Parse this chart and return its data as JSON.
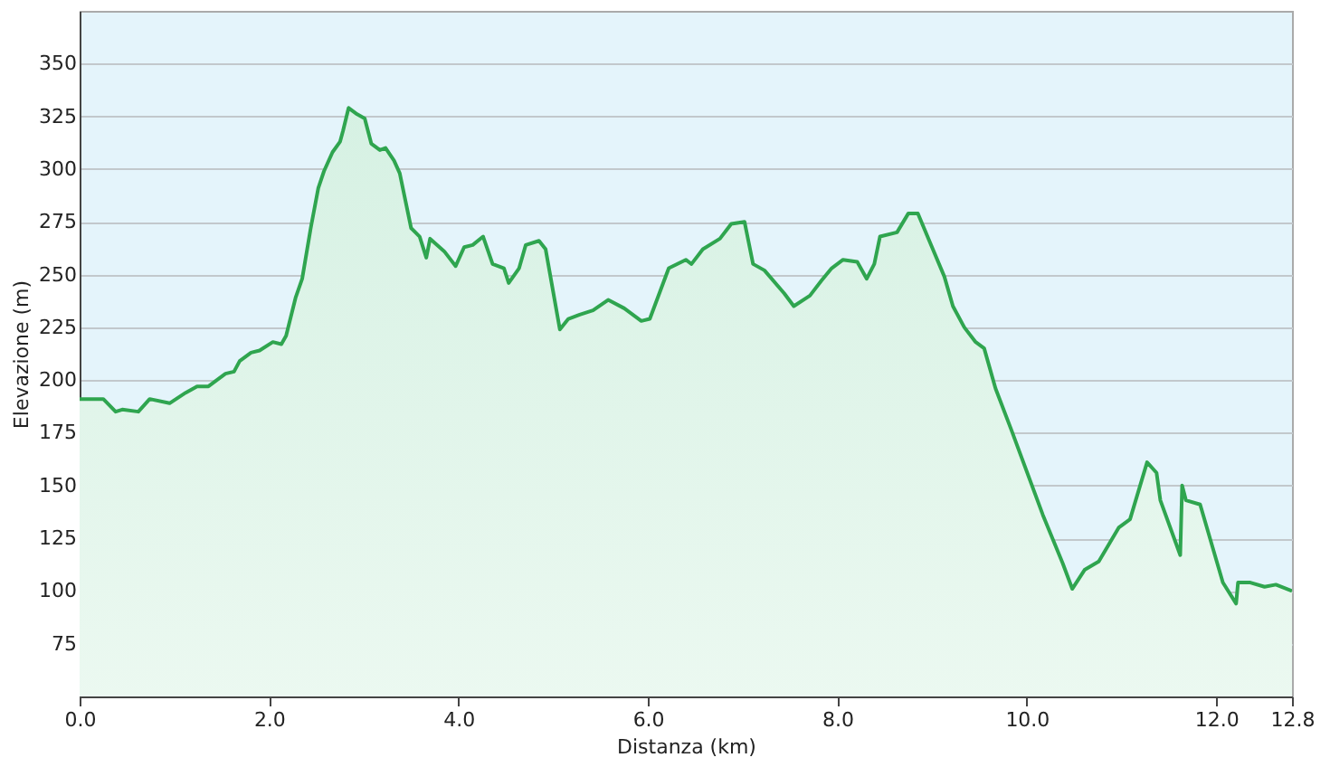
{
  "chart_data": {
    "type": "area",
    "xlabel": "Distanza  (km)",
    "ylabel": "Elevazione (m)",
    "xlim": [
      0,
      12.8
    ],
    "ylim": [
      50,
      375
    ],
    "xticks": [
      {
        "value": 0,
        "label": "0.0"
      },
      {
        "value": 2,
        "label": "2.0"
      },
      {
        "value": 4,
        "label": "4.0"
      },
      {
        "value": 6,
        "label": "6.0"
      },
      {
        "value": 8,
        "label": "8.0"
      },
      {
        "value": 10,
        "label": "10.0"
      },
      {
        "value": 12,
        "label": "12.0"
      },
      {
        "value": 12.8,
        "label": "12.8"
      }
    ],
    "yticks": [
      75,
      100,
      125,
      150,
      175,
      200,
      225,
      250,
      275,
      300,
      325,
      350
    ],
    "grid": "y",
    "series": [
      {
        "color": "#2fa54f",
        "x": [
          0,
          0.25,
          0.38,
          0.45,
          0.62,
          0.74,
          0.95,
          1.12,
          1.24,
          1.36,
          1.54,
          1.63,
          1.69,
          1.81,
          1.9,
          2.04,
          2.13,
          2.18,
          2.28,
          2.35,
          2.44,
          2.52,
          2.58,
          2.67,
          2.75,
          2.78,
          2.84,
          2.93,
          3.01,
          3.08,
          3.17,
          3.23,
          3.32,
          3.38,
          3.5,
          3.59,
          3.66,
          3.7,
          3.85,
          3.97,
          4.06,
          4.15,
          4.26,
          4.36,
          4.48,
          4.53,
          4.64,
          4.71,
          4.85,
          4.92,
          5.07,
          5.16,
          5.28,
          5.42,
          5.58,
          5.75,
          5.93,
          6.02,
          6.22,
          6.4,
          6.46,
          6.58,
          6.76,
          6.88,
          7.02,
          7.11,
          7.23,
          7.44,
          7.54,
          7.71,
          7.83,
          7.94,
          8.06,
          8.21,
          8.31,
          8.39,
          8.45,
          8.63,
          8.75,
          8.85,
          8.98,
          9.13,
          9.22,
          9.34,
          9.46,
          9.55,
          9.67,
          9.84,
          10.17,
          10.38,
          10.48,
          10.61,
          10.76,
          10.97,
          11.09,
          11.27,
          11.37,
          11.41,
          11.62,
          11.64,
          11.68,
          11.83,
          12.07,
          12.21,
          12.23,
          12.36,
          12.51,
          12.63,
          12.8
        ],
        "values": [
          191,
          191,
          185,
          186,
          185,
          191,
          189,
          194,
          197,
          197,
          203,
          204,
          209,
          213,
          214,
          218,
          217,
          221,
          239,
          248,
          272,
          291,
          299,
          308,
          313,
          318,
          329,
          326,
          324,
          312,
          309,
          310,
          304,
          298,
          272,
          268,
          258,
          267,
          261,
          254,
          263,
          264,
          268,
          255,
          253,
          246,
          253,
          264,
          266,
          262,
          224,
          229,
          231,
          233,
          238,
          234,
          228,
          229,
          253,
          257,
          255,
          262,
          267,
          274,
          275,
          255,
          252,
          241,
          235,
          240,
          247,
          253,
          257,
          256,
          248,
          255,
          268,
          270,
          279,
          279,
          265,
          249,
          235,
          225,
          218,
          215,
          196,
          176,
          136,
          113,
          101,
          110,
          114,
          130,
          134,
          161,
          156,
          143,
          117,
          150,
          143,
          141,
          104,
          94,
          104,
          104,
          102,
          103,
          100
        ]
      }
    ]
  }
}
